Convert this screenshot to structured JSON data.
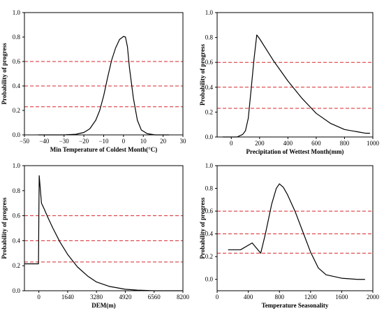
{
  "chart_data": [
    {
      "type": "line",
      "xlabel": "Min Temperature of Coldest Month(°C)",
      "ylabel": "Probability of progress",
      "xlim": [
        -50,
        30
      ],
      "ylim": [
        0,
        1.0
      ],
      "xticks": [
        -50,
        -40,
        -30,
        -20,
        -10,
        0,
        10,
        20,
        30
      ],
      "yticks": [
        0.0,
        0.2,
        0.4,
        0.6,
        0.8,
        1.0
      ],
      "xtick_labels": [
        "−50",
        "−40",
        "−30",
        "−20",
        "−10",
        "0",
        "10",
        "20",
        "30"
      ],
      "ytick_labels": [
        "0.0",
        "0.2",
        "0.4",
        "0.6",
        "0.8",
        "1.0"
      ],
      "thresholds": [
        0.6,
        0.4,
        0.23
      ],
      "curve": {
        "x": [
          -43,
          -30,
          -24,
          -20,
          -17,
          -14,
          -12,
          -10,
          -8,
          -6,
          -4,
          -2,
          0,
          1,
          2,
          3,
          5,
          7,
          9,
          12,
          16,
          23
        ],
        "y": [
          0.0,
          0.0,
          0.005,
          0.02,
          0.05,
          0.12,
          0.2,
          0.32,
          0.47,
          0.61,
          0.71,
          0.78,
          0.805,
          0.8,
          0.72,
          0.55,
          0.3,
          0.12,
          0.04,
          0.01,
          0.0,
          0.0
        ]
      }
    },
    {
      "type": "line",
      "xlabel": "Precipitation of Wettest Month(mm)",
      "ylabel": "Probability of progress",
      "xlim": [
        -100,
        1000
      ],
      "ylim": [
        0,
        1.0
      ],
      "xticks": [
        0,
        200,
        400,
        600,
        800,
        1000
      ],
      "yticks": [
        0.0,
        0.2,
        0.4,
        0.6,
        0.8,
        1.0
      ],
      "xtick_labels": [
        "0",
        "200",
        "400",
        "600",
        "800",
        "1000"
      ],
      "ytick_labels": [
        "0.0",
        "0.2",
        "0.4",
        "0.6",
        "0.8",
        "1.0"
      ],
      "thresholds": [
        0.6,
        0.4,
        0.23
      ],
      "curve": {
        "x": [
          -60,
          40,
          80,
          100,
          120,
          140,
          160,
          180,
          200,
          250,
          300,
          350,
          400,
          450,
          500,
          550,
          600,
          700,
          800,
          900,
          950,
          980
        ],
        "y": [
          0.0,
          0.0,
          0.02,
          0.05,
          0.15,
          0.38,
          0.62,
          0.82,
          0.79,
          0.7,
          0.61,
          0.53,
          0.45,
          0.38,
          0.31,
          0.25,
          0.19,
          0.11,
          0.06,
          0.04,
          0.03,
          0.03
        ]
      }
    },
    {
      "type": "line",
      "xlabel": "DEM(m)",
      "ylabel": "Probability of progress",
      "xlim": [
        -820,
        8200
      ],
      "ylim": [
        0,
        1.0
      ],
      "xticks": [
        0,
        1640,
        3280,
        4920,
        6560,
        8200
      ],
      "yticks": [
        0.0,
        0.2,
        0.4,
        0.6,
        0.8,
        1.0
      ],
      "xtick_labels": [
        "0",
        "1640",
        "3280",
        "4920",
        "6560",
        "8200"
      ],
      "ytick_labels": [
        "0.0",
        "0.2",
        "0.4",
        "0.6",
        "0.8",
        "1.0"
      ],
      "thresholds": [
        0.6,
        0.4,
        0.23
      ],
      "curve": {
        "x": [
          -820,
          -20,
          0,
          20,
          150,
          300,
          500,
          800,
          1200,
          1640,
          2200,
          2800,
          3280,
          4000,
          4920,
          5600,
          6560,
          7200,
          8200
        ],
        "y": [
          0.215,
          0.215,
          0.6,
          0.92,
          0.7,
          0.655,
          0.59,
          0.5,
          0.39,
          0.29,
          0.19,
          0.115,
          0.07,
          0.035,
          0.012,
          0.005,
          0.0,
          0.0,
          0.0
        ]
      }
    },
    {
      "type": "line",
      "xlabel": "Temperature Seasonality",
      "ylabel": "Probability of progress",
      "xlim": [
        0,
        2000
      ],
      "ylim": [
        -0.1,
        1.0
      ],
      "xticks": [
        0,
        400,
        800,
        1200,
        1600,
        2000
      ],
      "yticks": [
        0.0,
        0.2,
        0.4,
        0.6,
        0.8,
        1.0
      ],
      "xtick_labels": [
        "0",
        "400",
        "800",
        "1200",
        "1600",
        "2000"
      ],
      "ytick_labels": [
        "0.0",
        "0.2",
        "0.4",
        "0.6",
        "0.8",
        "1.0"
      ],
      "thresholds": [
        0.6,
        0.4,
        0.23
      ],
      "curve": {
        "x": [
          140,
          300,
          450,
          560,
          620,
          700,
          760,
          800,
          850,
          900,
          1000,
          1100,
          1200,
          1300,
          1400,
          1600,
          1800,
          1900
        ],
        "y": [
          0.26,
          0.26,
          0.32,
          0.23,
          0.4,
          0.66,
          0.8,
          0.84,
          0.81,
          0.75,
          0.6,
          0.42,
          0.24,
          0.1,
          0.04,
          0.01,
          0.0,
          0.0
        ]
      }
    }
  ]
}
